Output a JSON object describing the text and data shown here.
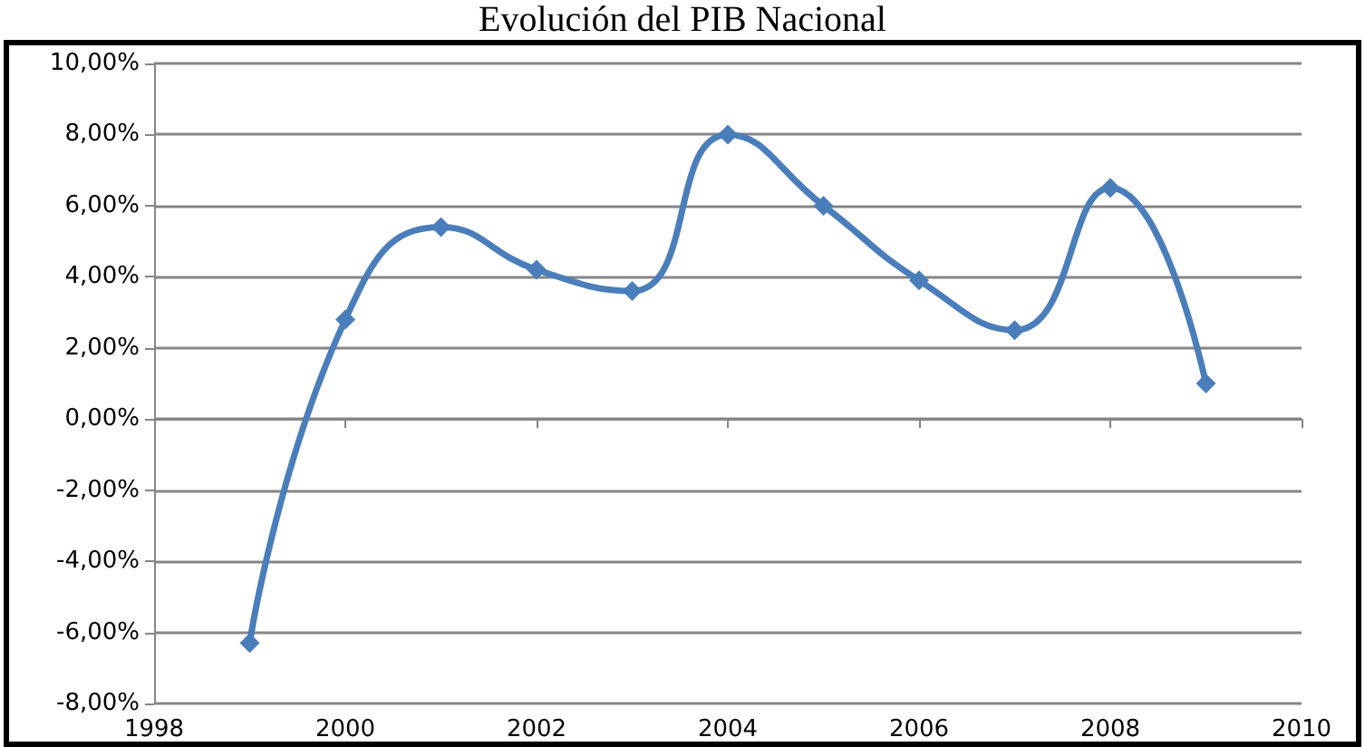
{
  "chart_data": {
    "type": "line",
    "title": "Evolución del PIB Nacional",
    "x": [
      1999,
      2000,
      2001,
      2002,
      2003,
      2004,
      2005,
      2006,
      2007,
      2008,
      2009
    ],
    "series": [
      {
        "color": "#4a7ebb",
        "values": [
          -6.3,
          2.8,
          5.4,
          4.2,
          3.6,
          8.0,
          6.0,
          3.9,
          2.5,
          6.5,
          1.0
        ]
      }
    ],
    "xlim": [
      1998,
      2010
    ],
    "xticks": [
      1998,
      2000,
      2002,
      2004,
      2006,
      2008,
      2010
    ],
    "ylim": [
      -8,
      10
    ],
    "yticks": [
      {
        "value": -8,
        "label": "-8,00%"
      },
      {
        "value": -6,
        "label": "-6,00%"
      },
      {
        "value": -4,
        "label": "-4,00%"
      },
      {
        "value": -2,
        "label": "-2,00%"
      },
      {
        "value": 0,
        "label": "0,00%"
      },
      {
        "value": 2,
        "label": "2,00%"
      },
      {
        "value": 4,
        "label": "4,00%"
      },
      {
        "value": 6,
        "label": "6,00%"
      },
      {
        "value": 8,
        "label": "8,00%"
      },
      {
        "value": 10,
        "label": "10,00%"
      }
    ],
    "grid": "y",
    "marker": "diamond",
    "line_style": "solid"
  }
}
